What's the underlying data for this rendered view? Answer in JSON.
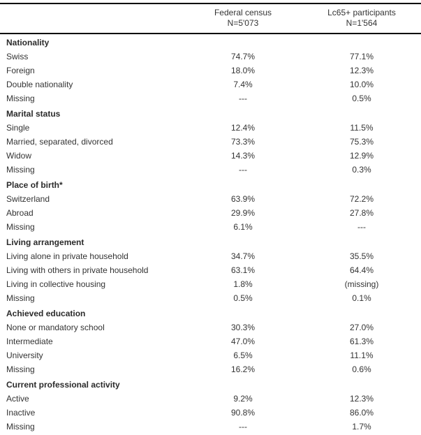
{
  "table": {
    "columns": [
      {
        "title": "Federal census",
        "n": "N=5'073"
      },
      {
        "title": "Lc65+ participants",
        "n": "N=1'564"
      }
    ],
    "sections": [
      {
        "title": "Nationality",
        "rows": [
          {
            "label": "Swiss",
            "values": [
              "74.7%",
              "77.1%"
            ]
          },
          {
            "label": "Foreign",
            "values": [
              "18.0%",
              "12.3%"
            ]
          },
          {
            "label": "Double nationality",
            "values": [
              "7.4%",
              "10.0%"
            ]
          },
          {
            "label": "Missing",
            "values": [
              "---",
              "0.5%"
            ]
          }
        ]
      },
      {
        "title": "Marital status",
        "rows": [
          {
            "label": "Single",
            "values": [
              "12.4%",
              "11.5%"
            ]
          },
          {
            "label": "Married, separated, divorced",
            "values": [
              "73.3%",
              "75.3%"
            ]
          },
          {
            "label": "Widow",
            "values": [
              "14.3%",
              "12.9%"
            ]
          },
          {
            "label": "Missing",
            "values": [
              "---",
              "0.3%"
            ]
          }
        ]
      },
      {
        "title": "Place of birth*",
        "rows": [
          {
            "label": "Switzerland",
            "values": [
              "63.9%",
              "72.2%"
            ]
          },
          {
            "label": "Abroad",
            "values": [
              "29.9%",
              "27.8%"
            ]
          },
          {
            "label": "Missing",
            "values": [
              "6.1%",
              "---"
            ]
          }
        ]
      },
      {
        "title": "Living arrangement",
        "rows": [
          {
            "label": "Living alone in private household",
            "values": [
              "34.7%",
              "35.5%"
            ]
          },
          {
            "label": "Living with others in private household",
            "values": [
              "63.1%",
              "64.4%"
            ]
          },
          {
            "label": "Living in collective housing",
            "values": [
              "1.8%",
              "(missing)"
            ]
          },
          {
            "label": "Missing",
            "values": [
              "0.5%",
              "0.1%"
            ]
          }
        ]
      },
      {
        "title": "Achieved education",
        "rows": [
          {
            "label": "None or mandatory school",
            "values": [
              "30.3%",
              "27.0%"
            ]
          },
          {
            "label": "Intermediate",
            "values": [
              "47.0%",
              "61.3%"
            ]
          },
          {
            "label": "University",
            "values": [
              "6.5%",
              "11.1%"
            ]
          },
          {
            "label": "Missing",
            "values": [
              "16.2%",
              "0.6%"
            ]
          }
        ]
      },
      {
        "title": "Current professional activity",
        "rows": [
          {
            "label": "Active",
            "values": [
              "9.2%",
              "12.3%"
            ]
          },
          {
            "label": "Inactive",
            "values": [
              "90.8%",
              "86.0%"
            ]
          },
          {
            "label": "Missing",
            "values": [
              "---",
              "1.7%"
            ]
          }
        ]
      }
    ]
  },
  "colors": {
    "text": "#333333",
    "section_text": "#2b2b2b",
    "border": "#000000",
    "background": "#ffffff"
  }
}
